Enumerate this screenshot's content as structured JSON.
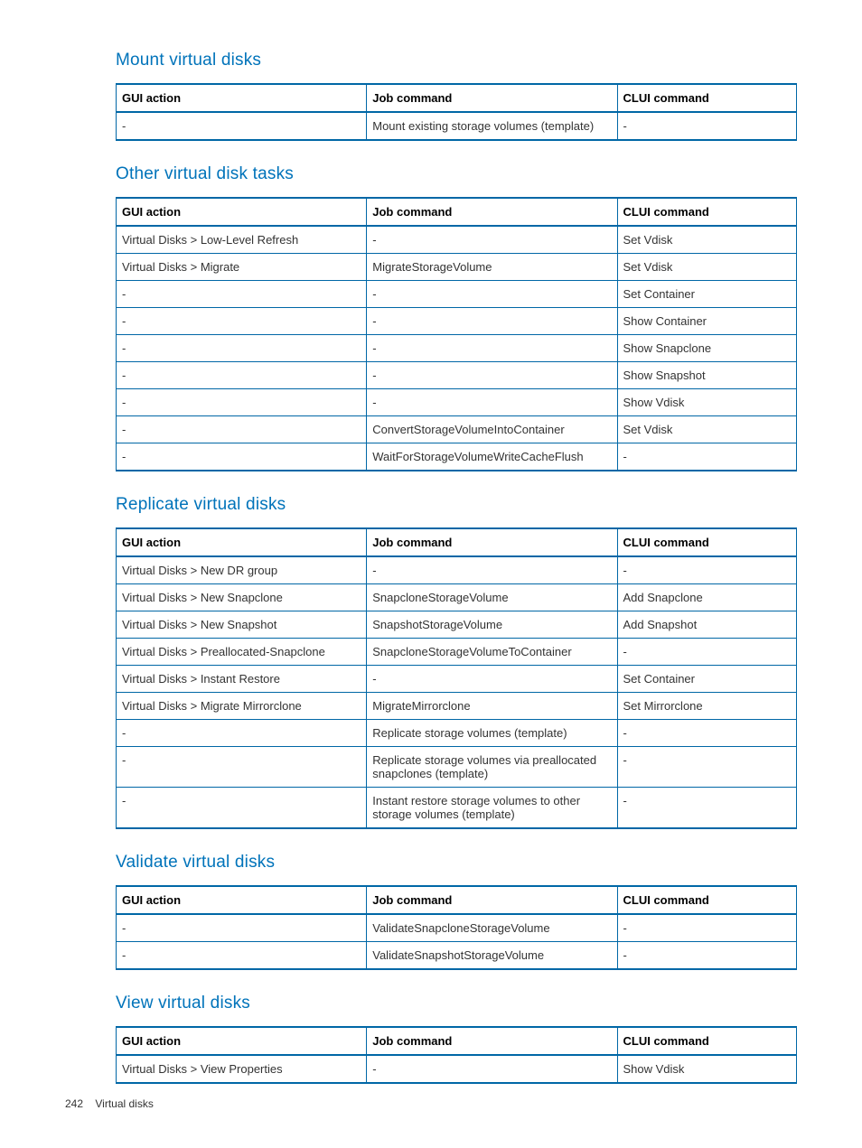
{
  "footer": {
    "page_number": "242",
    "section": "Virtual disks"
  },
  "sections": [
    {
      "title": "Mount virtual disks",
      "columns": [
        "GUI action",
        "Job command",
        "CLUI command"
      ],
      "rows": [
        [
          "-",
          "Mount existing storage volumes (template)",
          "-"
        ]
      ]
    },
    {
      "title": "Other virtual disk tasks",
      "columns": [
        "GUI action",
        "Job command",
        "CLUI command"
      ],
      "rows": [
        [
          "Virtual Disks > Low-Level Refresh",
          "-",
          "Set Vdisk"
        ],
        [
          "Virtual Disks > Migrate",
          "MigrateStorageVolume",
          "Set Vdisk"
        ],
        [
          "-",
          "-",
          "Set Container"
        ],
        [
          "-",
          "-",
          "Show Container"
        ],
        [
          "-",
          "-",
          "Show Snapclone"
        ],
        [
          "-",
          "-",
          "Show Snapshot"
        ],
        [
          "-",
          "-",
          "Show Vdisk"
        ],
        [
          "-",
          "ConvertStorageVolumeIntoContainer",
          "Set Vdisk"
        ],
        [
          "-",
          "WaitForStorageVolumeWriteCacheFlush",
          "-"
        ]
      ]
    },
    {
      "title": "Replicate virtual disks",
      "columns": [
        "GUI action",
        "Job command",
        "CLUI command"
      ],
      "rows": [
        [
          "Virtual Disks > New DR group",
          "-",
          "-"
        ],
        [
          "Virtual Disks > New Snapclone",
          "SnapcloneStorageVolume",
          "Add Snapclone"
        ],
        [
          "Virtual Disks > New Snapshot",
          "SnapshotStorageVolume",
          "Add Snapshot"
        ],
        [
          "Virtual Disks > Preallocated-Snapclone",
          "SnapcloneStorageVolumeToContainer",
          "-"
        ],
        [
          "Virtual Disks > Instant Restore",
          "-",
          "Set Container"
        ],
        [
          "Virtual Disks > Migrate Mirrorclone",
          "MigrateMirrorclone",
          "Set Mirrorclone"
        ],
        [
          "-",
          "Replicate storage volumes (template)",
          "-"
        ],
        [
          "-",
          "Replicate storage volumes via preallocated snapclones (template)",
          "-"
        ],
        [
          "-",
          "Instant restore storage volumes to other storage volumes (template)",
          "-"
        ]
      ]
    },
    {
      "title": "Validate virtual disks",
      "columns": [
        "GUI action",
        "Job command",
        "CLUI command"
      ],
      "rows": [
        [
          "-",
          "ValidateSnapcloneStorageVolume",
          "-"
        ],
        [
          "-",
          "ValidateSnapshotStorageVolume",
          "-"
        ]
      ]
    },
    {
      "title": "View virtual disks",
      "columns": [
        "GUI action",
        "Job command",
        "CLUI command"
      ],
      "rows": [
        [
          "Virtual Disks > View Properties",
          "-",
          "Show Vdisk"
        ]
      ]
    }
  ]
}
